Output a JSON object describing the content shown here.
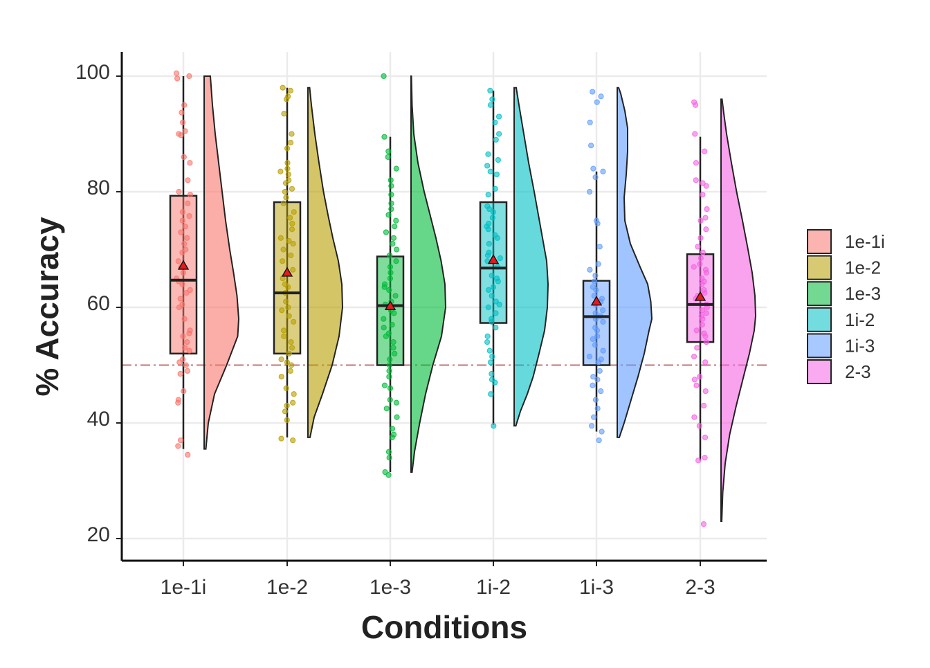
{
  "chart_data": {
    "type": "raincloud",
    "title": "",
    "xlabel": "Conditions",
    "ylabel": "% Accuracy",
    "ylim": [
      16,
      104
    ],
    "yticks": [
      20,
      40,
      60,
      80,
      100
    ],
    "grid": true,
    "legend_position": "right",
    "chance_line": {
      "y": 50,
      "color": "#c98686",
      "style": "dash-dot"
    },
    "categories": [
      "1e-1i",
      "1e-2",
      "1e-3",
      "1i-2",
      "1i-3",
      "2-3"
    ],
    "series": [
      {
        "name": "1e-1i",
        "color": "#f8766d",
        "box": {
          "q1": 52,
          "median": 64.7,
          "q3": 79.3,
          "whisker_low": 35.5,
          "whisker_high": 100
        },
        "mean": 67.2,
        "density": {
          "range": [
            35.5,
            100
          ],
          "points": [
            [
              35.5,
              0.05
            ],
            [
              40,
              0.12
            ],
            [
              45,
              0.3
            ],
            [
              50,
              0.65
            ],
            [
              55,
              0.97
            ],
            [
              58,
              1.0
            ],
            [
              62,
              0.95
            ],
            [
              66,
              0.85
            ],
            [
              70,
              0.74
            ],
            [
              75,
              0.62
            ],
            [
              80,
              0.52
            ],
            [
              85,
              0.42
            ],
            [
              90,
              0.32
            ],
            [
              95,
              0.24
            ],
            [
              100,
              0.18
            ]
          ]
        },
        "points": [
          100.5,
          100,
          99.6,
          95,
          93.7,
          92,
          90.5,
          90,
          89.8,
          86,
          85,
          82,
          80,
          79.5,
          78,
          76.5,
          75.8,
          75,
          74,
          73,
          72,
          71,
          70,
          69.5,
          68,
          67,
          66,
          65,
          64.5,
          64,
          63,
          62.5,
          61.5,
          60.5,
          60,
          58,
          56,
          55.5,
          55,
          54,
          53,
          52.5,
          51,
          50.5,
          50,
          49,
          48.5,
          45.5,
          44,
          43.5,
          37,
          36,
          34.5
        ]
      },
      {
        "name": "1e-2",
        "color": "#b79f00",
        "box": {
          "q1": 52,
          "median": 62.5,
          "q3": 78.2,
          "whisker_low": 37.5,
          "whisker_high": 98
        },
        "mean": 66,
        "density": {
          "range": [
            37.5,
            98
          ],
          "points": [
            [
              37.5,
              0.06
            ],
            [
              41,
              0.18
            ],
            [
              45,
              0.42
            ],
            [
              50,
              0.7
            ],
            [
              55,
              0.9
            ],
            [
              60,
              1.0
            ],
            [
              64,
              0.98
            ],
            [
              68,
              0.88
            ],
            [
              72,
              0.72
            ],
            [
              76,
              0.58
            ],
            [
              80,
              0.45
            ],
            [
              85,
              0.32
            ],
            [
              90,
              0.2
            ],
            [
              95,
              0.1
            ],
            [
              98,
              0.05
            ]
          ]
        },
        "points": [
          98,
          97.5,
          96.5,
          96,
          93.5,
          90,
          88.5,
          87.5,
          85,
          84,
          83.5,
          83,
          82,
          81.5,
          80.5,
          80,
          79,
          78,
          76.5,
          75.5,
          74.5,
          73.5,
          72,
          71.5,
          71,
          70,
          69,
          68,
          66.5,
          65,
          64,
          63.5,
          62.5,
          61,
          60,
          59.5,
          58.5,
          57.5,
          56,
          55,
          54,
          53,
          52,
          51,
          50.5,
          50,
          49,
          48,
          46,
          45,
          43.5,
          43,
          42,
          40.5,
          37.3,
          37
        ]
      },
      {
        "name": "1e-3",
        "color": "#00ba38",
        "box": {
          "q1": 50,
          "median": 60.3,
          "q3": 68.8,
          "whisker_low": 31.5,
          "whisker_high": 89.5
        },
        "mean": 60.2,
        "density": {
          "range": [
            31.5,
            100
          ],
          "points": [
            [
              31.5,
              0.03
            ],
            [
              35,
              0.1
            ],
            [
              40,
              0.25
            ],
            [
              45,
              0.42
            ],
            [
              50,
              0.63
            ],
            [
              55,
              0.88
            ],
            [
              60,
              1.0
            ],
            [
              64,
              0.98
            ],
            [
              68,
              0.87
            ],
            [
              72,
              0.72
            ],
            [
              76,
              0.55
            ],
            [
              80,
              0.38
            ],
            [
              85,
              0.2
            ],
            [
              90,
              0.08
            ],
            [
              95,
              0.03
            ],
            [
              100,
              0.01
            ]
          ]
        },
        "points": [
          100,
          89.5,
          87,
          86,
          84,
          82,
          81,
          79.5,
          78,
          77,
          76,
          75,
          74,
          73,
          72,
          71,
          70,
          69,
          68,
          67,
          66,
          65,
          64,
          63.5,
          63,
          62,
          61,
          60.5,
          59.5,
          59,
          58,
          57,
          56.5,
          55.5,
          55,
          54,
          53,
          52,
          51,
          50,
          49,
          48,
          46.5,
          46,
          44,
          43.5,
          42.5,
          41,
          39,
          38,
          37.5,
          35,
          34,
          31.5,
          31
        ]
      },
      {
        "name": "1i-2",
        "color": "#00bfc4",
        "box": {
          "q1": 57.3,
          "median": 66.8,
          "q3": 78.2,
          "whisker_low": 39.7,
          "whisker_high": 97.5
        },
        "mean": 68.2,
        "density": {
          "range": [
            39.5,
            98
          ],
          "points": [
            [
              39.5,
              0.05
            ],
            [
              42,
              0.18
            ],
            [
              45,
              0.38
            ],
            [
              48,
              0.55
            ],
            [
              52,
              0.72
            ],
            [
              56,
              0.88
            ],
            [
              60,
              0.96
            ],
            [
              64,
              0.98
            ],
            [
              68,
              0.94
            ],
            [
              72,
              0.82
            ],
            [
              76,
              0.7
            ],
            [
              80,
              0.58
            ],
            [
              85,
              0.42
            ],
            [
              90,
              0.28
            ],
            [
              95,
              0.14
            ],
            [
              98,
              0.06
            ]
          ]
        },
        "points": [
          97.5,
          96,
          95,
          93,
          92,
          90,
          89,
          86.5,
          85.5,
          84.5,
          83.5,
          83,
          80.5,
          79.5,
          77.5,
          77,
          76.5,
          75.5,
          74.5,
          74,
          73.5,
          72.5,
          72,
          71,
          69.5,
          69,
          68.5,
          68,
          67,
          65.5,
          65,
          64.5,
          63.5,
          63,
          62,
          61,
          60.5,
          60,
          59,
          58,
          57.5,
          56.5,
          55,
          54,
          52.5,
          51.5,
          50.5,
          48.5,
          47.5,
          47,
          45,
          39.5
        ]
      },
      {
        "name": "1i-3",
        "color": "#619cff",
        "box": {
          "q1": 50,
          "median": 58.4,
          "q3": 64.6,
          "whisker_low": 38.5,
          "whisker_high": 83.5
        },
        "mean": 61,
        "density": {
          "range": [
            37.5,
            98
          ],
          "points": [
            [
              37.5,
              0.06
            ],
            [
              40,
              0.2
            ],
            [
              44,
              0.4
            ],
            [
              48,
              0.6
            ],
            [
              52,
              0.78
            ],
            [
              56,
              0.92
            ],
            [
              58,
              1.0
            ],
            [
              61,
              0.97
            ],
            [
              64,
              0.88
            ],
            [
              67,
              0.66
            ],
            [
              71,
              0.38
            ],
            [
              75,
              0.22
            ],
            [
              79,
              0.2
            ],
            [
              83,
              0.26
            ],
            [
              87,
              0.3
            ],
            [
              91,
              0.3
            ],
            [
              94,
              0.22
            ],
            [
              97,
              0.1
            ],
            [
              98,
              0.04
            ]
          ]
        },
        "points": [
          97.3,
          96.5,
          95.5,
          92,
          88,
          84,
          83.5,
          82.5,
          80,
          75,
          74.5,
          70.5,
          67.5,
          66.5,
          65.5,
          64.5,
          63.5,
          63,
          62,
          61.5,
          61,
          60.5,
          59.5,
          59,
          58.5,
          58,
          57.5,
          56.5,
          56,
          55,
          54.5,
          53.5,
          52.5,
          51.5,
          51,
          50.5,
          49,
          48,
          47.5,
          46.5,
          45.5,
          44,
          42.5,
          41,
          39.5,
          38.5,
          37
        ]
      },
      {
        "name": "2-3",
        "color": "#f564e3",
        "box": {
          "q1": 54,
          "median": 60.5,
          "q3": 69.2,
          "whisker_low": 33.5,
          "whisker_high": 89.5
        },
        "mean": 61.8,
        "density": {
          "range": [
            23,
            96
          ],
          "points": [
            [
              23,
              0.02
            ],
            [
              28,
              0.05
            ],
            [
              33,
              0.12
            ],
            [
              38,
              0.25
            ],
            [
              43,
              0.44
            ],
            [
              48,
              0.65
            ],
            [
              52,
              0.82
            ],
            [
              56,
              0.96
            ],
            [
              58.5,
              1.0
            ],
            [
              62,
              0.98
            ],
            [
              66,
              0.9
            ],
            [
              70,
              0.78
            ],
            [
              75,
              0.62
            ],
            [
              80,
              0.45
            ],
            [
              85,
              0.3
            ],
            [
              90,
              0.16
            ],
            [
              94,
              0.07
            ],
            [
              96,
              0.03
            ]
          ]
        },
        "points": [
          95.5,
          95,
          90,
          87,
          85,
          82,
          81.5,
          81,
          79.5,
          77,
          75.5,
          75,
          73.5,
          72,
          70.5,
          69.5,
          68.5,
          67.5,
          67,
          66.5,
          66,
          65,
          64.5,
          64,
          63,
          62.5,
          62,
          61.5,
          60.5,
          60,
          59.5,
          59,
          58.5,
          58,
          57,
          56,
          55.5,
          55,
          54,
          53,
          51.5,
          50.5,
          48,
          47.5,
          46.5,
          45.5,
          43,
          41,
          39.5,
          37.5,
          34,
          33.5,
          22.5
        ]
      }
    ]
  }
}
